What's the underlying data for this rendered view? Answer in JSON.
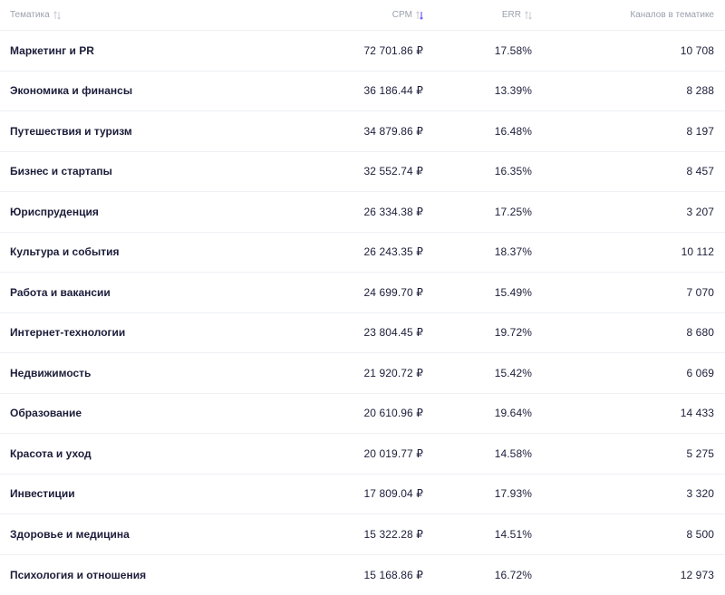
{
  "table": {
    "headers": {
      "topic": "Тематика",
      "cpm": "CPM",
      "err": "ERR",
      "channels": "Каналов в тематике"
    },
    "rows": [
      {
        "topic": "Маркетинг и PR",
        "cpm": "72 701.86 ₽",
        "err": "17.58%",
        "channels": "10 708"
      },
      {
        "topic": "Экономика и финансы",
        "cpm": "36 186.44 ₽",
        "err": "13.39%",
        "channels": "8 288"
      },
      {
        "topic": "Путешествия и туризм",
        "cpm": "34 879.86 ₽",
        "err": "16.48%",
        "channels": "8 197"
      },
      {
        "topic": "Бизнес и стартапы",
        "cpm": "32 552.74 ₽",
        "err": "16.35%",
        "channels": "8 457"
      },
      {
        "topic": "Юриспруденция",
        "cpm": "26 334.38 ₽",
        "err": "17.25%",
        "channels": "3 207"
      },
      {
        "topic": "Культура и события",
        "cpm": "26 243.35 ₽",
        "err": "18.37%",
        "channels": "10 112"
      },
      {
        "topic": "Работа и вакансии",
        "cpm": "24 699.70 ₽",
        "err": "15.49%",
        "channels": "7 070"
      },
      {
        "topic": "Интернет-технологии",
        "cpm": "23 804.45 ₽",
        "err": "19.72%",
        "channels": "8 680"
      },
      {
        "topic": "Недвижимость",
        "cpm": "21 920.72 ₽",
        "err": "15.42%",
        "channels": "6 069"
      },
      {
        "topic": "Образование",
        "cpm": "20 610.96 ₽",
        "err": "19.64%",
        "channels": "14 433"
      },
      {
        "topic": "Красота и уход",
        "cpm": "20 019.77 ₽",
        "err": "14.58%",
        "channels": "5 275"
      },
      {
        "topic": "Инвестиции",
        "cpm": "17 809.04 ₽",
        "err": "17.93%",
        "channels": "3 320"
      },
      {
        "topic": "Здоровье и медицина",
        "cpm": "15 322.28 ₽",
        "err": "14.51%",
        "channels": "8 500"
      },
      {
        "topic": "Психология и отношения",
        "cpm": "15 168.86 ₽",
        "err": "16.72%",
        "channels": "12 973"
      }
    ]
  },
  "icons": {
    "sort_inactive": "sort-arrows-icon",
    "sort_active": "sort-active-arrows-icon"
  },
  "colors": {
    "text": "#1c1d3a",
    "header_text": "#9aa0ad",
    "divider": "#eef0f4",
    "sort_active": "#6b5cf6",
    "sort_inactive": "#c9ccd4"
  }
}
